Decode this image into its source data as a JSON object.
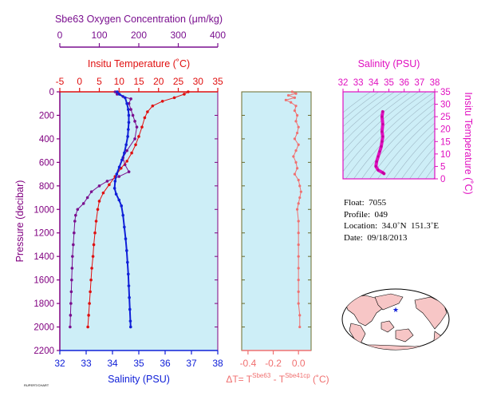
{
  "colors": {
    "panel_bg": "#cdeef7",
    "oxygen": "#7a0f8f",
    "temperature": "#e01010",
    "salinity": "#1020d8",
    "delta": "#f07070",
    "pressure_axis": "#800080",
    "ts_axis": "#e010c0",
    "land": "#f7c6c6",
    "ocean": "#ffffff",
    "float_marker": "#1020d8"
  },
  "chart_data": [
    {
      "type": "line",
      "ylabel": "Pressure (decibar)",
      "yticks": [
        "0",
        "200",
        "400",
        "600",
        "800",
        "1000",
        "1200",
        "1400",
        "1600",
        "1800",
        "2000",
        "2200"
      ],
      "ylim": [
        2200,
        0
      ],
      "axes": {
        "oxygen": {
          "label": "Sbe63 Oxygen Concentration (μm/kg)",
          "ticks": [
            "0",
            "100",
            "200",
            "300",
            "400"
          ],
          "range": [
            0,
            400
          ]
        },
        "temperature": {
          "label": "Insitu Temperature (˚C)",
          "ticks": [
            "-5",
            "0",
            "5",
            "10",
            "15",
            "20",
            "25",
            "30",
            "35"
          ],
          "range": [
            -5,
            35
          ]
        },
        "salinity": {
          "label": "Salinity (PSU)",
          "ticks": [
            "32",
            "33",
            "34",
            "35",
            "36",
            "37",
            "38"
          ],
          "range": [
            32,
            38
          ]
        }
      },
      "series": [
        {
          "name": "Oxygen",
          "values": [
            [
              140,
              0
            ],
            [
              145,
              20
            ],
            [
              160,
              40
            ],
            [
              180,
              60
            ],
            [
              175,
              100
            ],
            [
              180,
              150
            ],
            [
              185,
              200
            ],
            [
              190,
              250
            ],
            [
              195,
              300
            ],
            [
              190,
              400
            ],
            [
              170,
              500
            ],
            [
              160,
              560
            ],
            [
              165,
              620
            ],
            [
              175,
              680
            ],
            [
              150,
              720
            ],
            [
              120,
              760
            ],
            [
              100,
              800
            ],
            [
              80,
              850
            ],
            [
              70,
              900
            ],
            [
              60,
              950
            ],
            [
              45,
              1000
            ],
            [
              40,
              1050
            ],
            [
              38,
              1100
            ],
            [
              36,
              1200
            ],
            [
              34,
              1300
            ],
            [
              32,
              1400
            ],
            [
              31,
              1500
            ],
            [
              30,
              1600
            ],
            [
              29,
              1700
            ],
            [
              28,
              1800
            ],
            [
              27,
              1900
            ],
            [
              26,
              2000
            ]
          ]
        },
        {
          "name": "Temperature",
          "values": [
            [
              27.5,
              0
            ],
            [
              26.5,
              20
            ],
            [
              24,
              50
            ],
            [
              21,
              80
            ],
            [
              18.5,
              120
            ],
            [
              17.2,
              170
            ],
            [
              16.5,
              220
            ],
            [
              15.8,
              300
            ],
            [
              15,
              380
            ],
            [
              14.2,
              450
            ],
            [
              13.2,
              520
            ],
            [
              12,
              590
            ],
            [
              10.5,
              650
            ],
            [
              9,
              720
            ],
            [
              7.5,
              790
            ],
            [
              6,
              860
            ],
            [
              5,
              930
            ],
            [
              4.6,
              1000
            ],
            [
              4.2,
              1100
            ],
            [
              3.9,
              1200
            ],
            [
              3.6,
              1300
            ],
            [
              3.4,
              1400
            ],
            [
              3.1,
              1500
            ],
            [
              2.9,
              1600
            ],
            [
              2.7,
              1700
            ],
            [
              2.5,
              1800
            ],
            [
              2.3,
              1900
            ],
            [
              2.1,
              2000
            ]
          ]
        },
        {
          "name": "Salinity",
          "values": [
            [
              34.18,
              0
            ],
            [
              34.26,
              20
            ],
            [
              34.48,
              50
            ],
            [
              34.55,
              100
            ],
            [
              34.6,
              150
            ],
            [
              34.62,
              200
            ],
            [
              34.62,
              260
            ],
            [
              34.6,
              320
            ],
            [
              34.58,
              380
            ],
            [
              34.52,
              450
            ],
            [
              34.45,
              520
            ],
            [
              34.36,
              580
            ],
            [
              34.26,
              640
            ],
            [
              34.16,
              700
            ],
            [
              34.1,
              760
            ],
            [
              34.08,
              820
            ],
            [
              34.14,
              870
            ],
            [
              34.25,
              920
            ],
            [
              34.34,
              970
            ],
            [
              34.4,
              1050
            ],
            [
              34.45,
              1150
            ],
            [
              34.5,
              1250
            ],
            [
              34.54,
              1350
            ],
            [
              34.57,
              1450
            ],
            [
              34.6,
              1550
            ],
            [
              34.62,
              1650
            ],
            [
              34.64,
              1750
            ],
            [
              34.66,
              1850
            ],
            [
              34.68,
              1950
            ],
            [
              34.69,
              2000
            ]
          ]
        }
      ]
    },
    {
      "type": "line",
      "xlabel_prefix": "ΔT= T",
      "xlabel_sup1": "Sbe63",
      "xlabel_mid": " - T",
      "xlabel_sup2": "Sbe41cp",
      "xlabel_suffix": " (˚C)",
      "xticks": [
        "-0.4",
        "-0.2",
        "0.0"
      ],
      "xlim": [
        -0.45,
        0.1
      ],
      "series": [
        {
          "name": "Delta T",
          "values": [
            [
              -0.05,
              0
            ],
            [
              -0.02,
              15
            ],
            [
              -0.08,
              30
            ],
            [
              -0.03,
              50
            ],
            [
              -0.1,
              70
            ],
            [
              -0.06,
              90
            ],
            [
              -0.02,
              120
            ],
            [
              -0.03,
              160
            ],
            [
              -0.01,
              200
            ],
            [
              -0.02,
              250
            ],
            [
              0.0,
              300
            ],
            [
              -0.01,
              350
            ],
            [
              -0.03,
              400
            ],
            [
              0.0,
              450
            ],
            [
              -0.02,
              500
            ],
            [
              -0.04,
              550
            ],
            [
              -0.02,
              600
            ],
            [
              -0.01,
              650
            ],
            [
              -0.03,
              700
            ],
            [
              0.0,
              750
            ],
            [
              0.01,
              800
            ],
            [
              0.02,
              850
            ],
            [
              0.01,
              900
            ],
            [
              0.0,
              950
            ],
            [
              -0.01,
              1000
            ],
            [
              0.0,
              1100
            ],
            [
              0.0,
              1200
            ],
            [
              0.0,
              1300
            ],
            [
              0.0,
              1400
            ],
            [
              0.0,
              1500
            ],
            [
              0.0,
              1600
            ],
            [
              0.0,
              1700
            ],
            [
              0.0,
              1800
            ],
            [
              0.01,
              1900
            ],
            [
              0.01,
              2000
            ]
          ]
        }
      ]
    },
    {
      "type": "scatter",
      "title": "Salinity (PSU)",
      "xticks": [
        "32",
        "33",
        "34",
        "35",
        "36",
        "37",
        "38"
      ],
      "xlim": [
        32,
        38
      ],
      "ylabel": "Insitu Temperature (˚C)",
      "yticks": [
        "0",
        "5",
        "10",
        "15",
        "20",
        "25",
        "30",
        "35"
      ],
      "ylim": [
        0,
        35
      ],
      "series": [
        {
          "name": "T-S",
          "values": [
            [
              34.6,
              27
            ],
            [
              34.55,
              25
            ],
            [
              34.6,
              22
            ],
            [
              34.55,
              19
            ],
            [
              34.6,
              17
            ],
            [
              34.55,
              15
            ],
            [
              34.5,
              13
            ],
            [
              34.4,
              11
            ],
            [
              34.3,
              9
            ],
            [
              34.2,
              7
            ],
            [
              34.15,
              5
            ],
            [
              34.3,
              3.5
            ],
            [
              34.6,
              2.5
            ],
            [
              34.68,
              2.1
            ]
          ]
        }
      ]
    }
  ],
  "info": {
    "float": "Float:  7055",
    "profile": "Profile:  049",
    "location": "Location:  34.0˚N  151.3˚E",
    "date": "Date:  09/18/2013"
  },
  "stamp": "RUPERT/CHART"
}
